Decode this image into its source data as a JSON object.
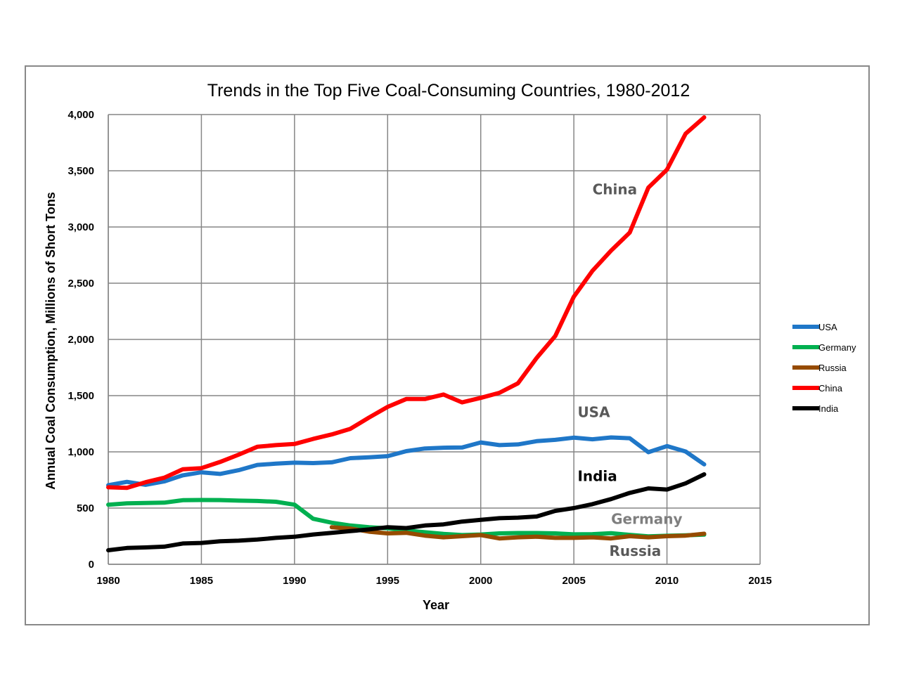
{
  "chart_data": {
    "type": "line",
    "title": "Trends in the Top Five Coal-Consuming Countries, 1980-2012",
    "xlabel": "Year",
    "ylabel": "Annual Coal Consumption, Millions of Short Tons",
    "xlim": [
      1980,
      2015
    ],
    "ylim": [
      0,
      4000
    ],
    "x_ticks": [
      1980,
      1985,
      1990,
      1995,
      2000,
      2005,
      2010,
      2015
    ],
    "y_ticks": [
      0,
      500,
      1000,
      1500,
      2000,
      2500,
      3000,
      3500,
      4000
    ],
    "x_tick_labels": [
      "1980",
      "1985",
      "1990",
      "1995",
      "2000",
      "2005",
      "2010",
      "2015"
    ],
    "y_tick_labels": [
      "0",
      "500",
      "1,000",
      "1,500",
      "2,000",
      "2,500",
      "3,000",
      "3,500",
      "4,000"
    ],
    "grid": true,
    "legend_position": "right",
    "series": [
      {
        "name": "USA",
        "color": "#1F77C8",
        "x": [
          1980,
          1981,
          1982,
          1983,
          1984,
          1985,
          1986,
          1987,
          1988,
          1989,
          1990,
          1991,
          1992,
          1993,
          1994,
          1995,
          1996,
          1997,
          1998,
          1999,
          2000,
          2001,
          2002,
          2003,
          2004,
          2005,
          2006,
          2007,
          2008,
          2009,
          2010,
          2011,
          2012
        ],
        "y": [
          703,
          733,
          707,
          737,
          791,
          818,
          804,
          837,
          884,
          895,
          904,
          900,
          907,
          944,
          951,
          962,
          1006,
          1030,
          1037,
          1039,
          1084,
          1060,
          1066,
          1095,
          1107,
          1126,
          1112,
          1128,
          1121,
          997,
          1051,
          1003,
          889
        ]
      },
      {
        "name": "Germany",
        "color": "#00B050",
        "x": [
          1980,
          1981,
          1982,
          1983,
          1984,
          1985,
          1986,
          1987,
          1988,
          1989,
          1990,
          1991,
          1992,
          1993,
          1994,
          1995,
          1996,
          1997,
          1998,
          1999,
          2000,
          2001,
          2002,
          2003,
          2004,
          2005,
          2006,
          2007,
          2008,
          2009,
          2010,
          2011,
          2012
        ],
        "y": [
          530,
          542,
          545,
          548,
          570,
          572,
          571,
          566,
          563,
          556,
          530,
          405,
          370,
          345,
          330,
          320,
          300,
          285,
          270,
          260,
          265,
          275,
          278,
          278,
          275,
          266,
          268,
          276,
          262,
          248,
          254,
          258,
          264
        ]
      },
      {
        "name": "Russia",
        "color": "#964B00",
        "x": [
          1992,
          1993,
          1994,
          1995,
          1996,
          1997,
          1998,
          1999,
          2000,
          2001,
          2002,
          2003,
          2004,
          2005,
          2006,
          2007,
          2008,
          2009,
          2010,
          2011,
          2012
        ],
        "y": [
          330,
          318,
          290,
          275,
          280,
          255,
          240,
          250,
          260,
          230,
          240,
          245,
          235,
          235,
          240,
          230,
          250,
          240,
          250,
          255,
          272
        ]
      },
      {
        "name": "China",
        "color": "#FF0000",
        "x": [
          1980,
          1981,
          1982,
          1983,
          1984,
          1985,
          1986,
          1987,
          1988,
          1989,
          1990,
          1991,
          1992,
          1993,
          1994,
          1995,
          1996,
          1997,
          1998,
          1999,
          2000,
          2001,
          2002,
          2003,
          2004,
          2005,
          2006,
          2007,
          2008,
          2009,
          2010,
          2011,
          2012
        ],
        "y": [
          685,
          680,
          730,
          770,
          845,
          855,
          910,
          975,
          1045,
          1060,
          1070,
          1115,
          1155,
          1205,
          1305,
          1400,
          1470,
          1470,
          1510,
          1440,
          1480,
          1525,
          1610,
          1835,
          2030,
          2380,
          2610,
          2790,
          2950,
          3350,
          3510,
          3830,
          3975
        ]
      },
      {
        "name": "India",
        "color": "#000000",
        "x": [
          1980,
          1981,
          1982,
          1983,
          1984,
          1985,
          1986,
          1987,
          1988,
          1989,
          1990,
          1991,
          1992,
          1993,
          1994,
          1995,
          1996,
          1997,
          1998,
          1999,
          2000,
          2001,
          2002,
          2003,
          2004,
          2005,
          2006,
          2007,
          2008,
          2009,
          2010,
          2011,
          2012
        ],
        "y": [
          125,
          145,
          150,
          157,
          185,
          190,
          205,
          210,
          220,
          235,
          245,
          265,
          280,
          295,
          310,
          330,
          322,
          345,
          355,
          380,
          395,
          410,
          415,
          425,
          475,
          500,
          535,
          580,
          635,
          675,
          665,
          720,
          800
        ]
      }
    ],
    "annotations": [
      {
        "text": "China",
        "x": 2006.0,
        "y": 3290,
        "color": "#595959"
      },
      {
        "text": "USA",
        "x": 2005.2,
        "y": 1310,
        "color": "#595959"
      },
      {
        "text": "India",
        "x": 2005.2,
        "y": 740,
        "color": "#000000"
      },
      {
        "text": "Germany",
        "x": 2007.0,
        "y": 360,
        "color": "#7F7F7F"
      },
      {
        "text": "Russia",
        "x": 2006.9,
        "y": 75,
        "color": "#595959"
      }
    ]
  }
}
